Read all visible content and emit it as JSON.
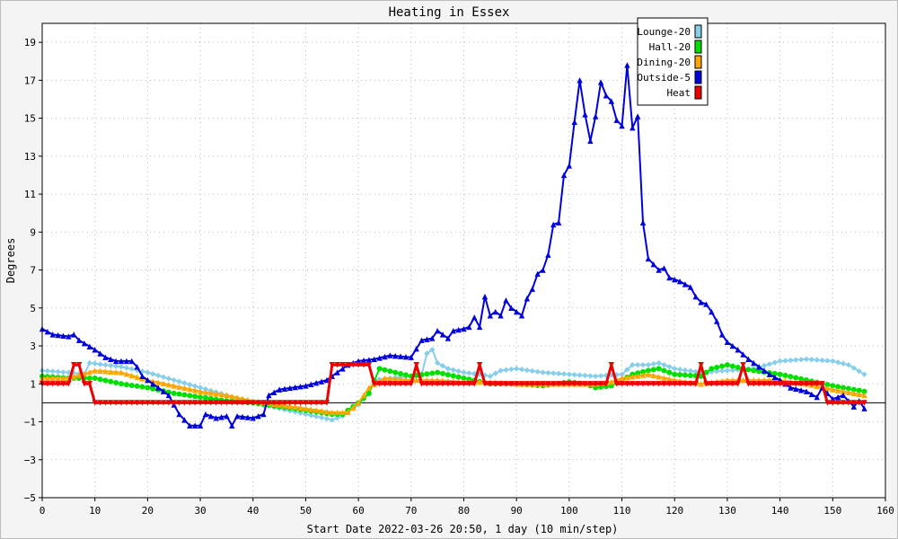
{
  "chart_data": {
    "type": "line",
    "title": "Heating in Essex",
    "xlabel": "Start Date 2022-03-26 20:50, 1 day (10 min/step)",
    "ylabel": "Degrees",
    "xlim": [
      0,
      160
    ],
    "ylim": [
      -5,
      20
    ],
    "xticks": [
      0,
      10,
      20,
      30,
      40,
      50,
      60,
      70,
      80,
      90,
      100,
      110,
      120,
      130,
      140,
      150,
      160
    ],
    "yticks": [
      -5,
      -3,
      -1,
      1,
      3,
      5,
      7,
      9,
      11,
      13,
      15,
      17,
      19
    ],
    "zero_line": 0,
    "grid": true,
    "legend_position": "top-right",
    "series": [
      {
        "name": "Lounge-20",
        "color": "#87ceeb",
        "marker": "diamond",
        "points": [
          [
            0,
            1.7
          ],
          [
            5,
            1.6
          ],
          [
            8,
            1.5
          ],
          [
            9,
            2.1
          ],
          [
            12,
            2.0
          ],
          [
            15,
            1.9
          ],
          [
            20,
            1.6
          ],
          [
            25,
            1.2
          ],
          [
            30,
            0.8
          ],
          [
            35,
            0.4
          ],
          [
            40,
            0.0
          ],
          [
            45,
            -0.3
          ],
          [
            50,
            -0.6
          ],
          [
            55,
            -0.9
          ],
          [
            57,
            -0.7
          ],
          [
            60,
            -0.1
          ],
          [
            62,
            0.5
          ],
          [
            63,
            1.2
          ],
          [
            66,
            1.3
          ],
          [
            70,
            1.4
          ],
          [
            72,
            1.5
          ],
          [
            73,
            2.6
          ],
          [
            74,
            2.8
          ],
          [
            75,
            2.1
          ],
          [
            77,
            1.8
          ],
          [
            80,
            1.6
          ],
          [
            83,
            1.5
          ],
          [
            85,
            1.4
          ],
          [
            87,
            1.7
          ],
          [
            90,
            1.8
          ],
          [
            95,
            1.6
          ],
          [
            100,
            1.5
          ],
          [
            105,
            1.4
          ],
          [
            110,
            1.5
          ],
          [
            112,
            2.0
          ],
          [
            115,
            2.0
          ],
          [
            117,
            2.1
          ],
          [
            120,
            1.8
          ],
          [
            125,
            1.6
          ],
          [
            130,
            1.7
          ],
          [
            135,
            1.8
          ],
          [
            140,
            2.2
          ],
          [
            145,
            2.3
          ],
          [
            150,
            2.2
          ],
          [
            153,
            2.0
          ],
          [
            156,
            1.5
          ]
        ]
      },
      {
        "name": "Hall-20",
        "color": "#00e000",
        "marker": "circle",
        "points": [
          [
            0,
            1.4
          ],
          [
            5,
            1.3
          ],
          [
            10,
            1.3
          ],
          [
            15,
            1.0
          ],
          [
            20,
            0.8
          ],
          [
            25,
            0.5
          ],
          [
            30,
            0.3
          ],
          [
            35,
            0.1
          ],
          [
            40,
            0.0
          ],
          [
            45,
            -0.2
          ],
          [
            50,
            -0.4
          ],
          [
            55,
            -0.6
          ],
          [
            57,
            -0.6
          ],
          [
            60,
            0.0
          ],
          [
            62,
            0.5
          ],
          [
            64,
            1.8
          ],
          [
            67,
            1.6
          ],
          [
            70,
            1.4
          ],
          [
            75,
            1.6
          ],
          [
            80,
            1.3
          ],
          [
            85,
            1.0
          ],
          [
            90,
            1.0
          ],
          [
            95,
            0.9
          ],
          [
            100,
            1.1
          ],
          [
            103,
            1.0
          ],
          [
            105,
            0.8
          ],
          [
            108,
            0.9
          ],
          [
            112,
            1.5
          ],
          [
            115,
            1.7
          ],
          [
            117,
            1.8
          ],
          [
            120,
            1.5
          ],
          [
            125,
            1.4
          ],
          [
            127,
            1.8
          ],
          [
            130,
            2.0
          ],
          [
            133,
            1.8
          ],
          [
            135,
            1.7
          ],
          [
            140,
            1.5
          ],
          [
            145,
            1.2
          ],
          [
            150,
            0.9
          ],
          [
            156,
            0.6
          ]
        ]
      },
      {
        "name": "Dining-20",
        "color": "#ffa500",
        "marker": "triangle",
        "points": [
          [
            0,
            1.3
          ],
          [
            5,
            1.3
          ],
          [
            10,
            1.7
          ],
          [
            15,
            1.6
          ],
          [
            20,
            1.2
          ],
          [
            25,
            0.9
          ],
          [
            30,
            0.6
          ],
          [
            35,
            0.4
          ],
          [
            40,
            0.1
          ],
          [
            45,
            -0.1
          ],
          [
            50,
            -0.3
          ],
          [
            55,
            -0.5
          ],
          [
            58,
            -0.5
          ],
          [
            60,
            0.0
          ],
          [
            62,
            0.8
          ],
          [
            65,
            1.3
          ],
          [
            70,
            1.2
          ],
          [
            75,
            1.2
          ],
          [
            80,
            1.1
          ],
          [
            85,
            1.1
          ],
          [
            90,
            1.0
          ],
          [
            95,
            1.0
          ],
          [
            100,
            1.0
          ],
          [
            105,
            1.0
          ],
          [
            108,
            1.1
          ],
          [
            110,
            1.3
          ],
          [
            115,
            1.5
          ],
          [
            120,
            1.2
          ],
          [
            125,
            1.0
          ],
          [
            130,
            1.2
          ],
          [
            135,
            1.2
          ],
          [
            140,
            1.2
          ],
          [
            145,
            1.0
          ],
          [
            150,
            0.7
          ],
          [
            156,
            0.4
          ]
        ]
      },
      {
        "name": "Outside-5",
        "color": "#0000dd",
        "marker": "triangle",
        "points": [
          [
            0,
            3.9
          ],
          [
            2,
            3.6
          ],
          [
            5,
            3.5
          ],
          [
            6,
            3.6
          ],
          [
            7,
            3.3
          ],
          [
            10,
            2.8
          ],
          [
            12,
            2.4
          ],
          [
            14,
            2.2
          ],
          [
            17,
            2.2
          ],
          [
            18,
            1.9
          ],
          [
            19,
            1.4
          ],
          [
            22,
            0.8
          ],
          [
            24,
            0.4
          ],
          [
            26,
            -0.6
          ],
          [
            28,
            -1.2
          ],
          [
            30,
            -1.2
          ],
          [
            31,
            -0.6
          ],
          [
            33,
            -0.8
          ],
          [
            35,
            -0.7
          ],
          [
            36,
            -1.2
          ],
          [
            37,
            -0.7
          ],
          [
            40,
            -0.8
          ],
          [
            42,
            -0.6
          ],
          [
            43,
            0.4
          ],
          [
            45,
            0.7
          ],
          [
            50,
            0.9
          ],
          [
            54,
            1.2
          ],
          [
            56,
            1.6
          ],
          [
            58,
            2.0
          ],
          [
            60,
            2.2
          ],
          [
            63,
            2.3
          ],
          [
            66,
            2.5
          ],
          [
            70,
            2.4
          ],
          [
            72,
            3.3
          ],
          [
            74,
            3.4
          ],
          [
            75,
            3.8
          ],
          [
            77,
            3.4
          ],
          [
            78,
            3.8
          ],
          [
            80,
            3.9
          ],
          [
            81,
            4.0
          ],
          [
            82,
            4.5
          ],
          [
            83,
            4.0
          ],
          [
            84,
            5.6
          ],
          [
            85,
            4.6
          ],
          [
            86,
            4.8
          ],
          [
            87,
            4.6
          ],
          [
            88,
            5.4
          ],
          [
            89,
            5.0
          ],
          [
            90,
            4.8
          ],
          [
            91,
            4.6
          ],
          [
            92,
            5.5
          ],
          [
            93,
            6.0
          ],
          [
            94,
            6.8
          ],
          [
            95,
            7.0
          ],
          [
            96,
            7.8
          ],
          [
            97,
            9.4
          ],
          [
            98,
            9.5
          ],
          [
            99,
            12.0
          ],
          [
            100,
            12.5
          ],
          [
            101,
            14.8
          ],
          [
            102,
            17.0
          ],
          [
            103,
            15.2
          ],
          [
            104,
            13.8
          ],
          [
            105,
            15.1
          ],
          [
            106,
            16.9
          ],
          [
            107,
            16.2
          ],
          [
            108,
            15.9
          ],
          [
            109,
            14.9
          ],
          [
            110,
            14.6
          ],
          [
            111,
            17.8
          ],
          [
            112,
            14.5
          ],
          [
            113,
            15.1
          ],
          [
            114,
            9.5
          ],
          [
            115,
            7.6
          ],
          [
            117,
            7.0
          ],
          [
            118,
            7.1
          ],
          [
            119,
            6.6
          ],
          [
            121,
            6.4
          ],
          [
            123,
            6.1
          ],
          [
            124,
            5.6
          ],
          [
            125,
            5.3
          ],
          [
            126,
            5.2
          ],
          [
            127,
            4.8
          ],
          [
            128,
            4.3
          ],
          [
            129,
            3.6
          ],
          [
            130,
            3.2
          ],
          [
            132,
            2.8
          ],
          [
            134,
            2.3
          ],
          [
            136,
            1.9
          ],
          [
            138,
            1.5
          ],
          [
            140,
            1.2
          ],
          [
            142,
            0.8
          ],
          [
            145,
            0.6
          ],
          [
            147,
            0.3
          ],
          [
            148,
            0.8
          ],
          [
            150,
            0.2
          ],
          [
            152,
            0.4
          ],
          [
            154,
            -0.2
          ],
          [
            155,
            0.1
          ],
          [
            156,
            -0.3
          ]
        ]
      },
      {
        "name": "Heat",
        "color": "#ee0000",
        "marker": "triangle-down",
        "points": [
          [
            0,
            1.0
          ],
          [
            5,
            1.0
          ],
          [
            6,
            2.0
          ],
          [
            7,
            2.0
          ],
          [
            8,
            1.0
          ],
          [
            9,
            1.0
          ],
          [
            10,
            0.0
          ],
          [
            54,
            0.0
          ],
          [
            55,
            2.0
          ],
          [
            62,
            2.0
          ],
          [
            63,
            1.0
          ],
          [
            70,
            1.0
          ],
          [
            71,
            2.0
          ],
          [
            72,
            1.0
          ],
          [
            82,
            1.0
          ],
          [
            83,
            2.0
          ],
          [
            84,
            1.0
          ],
          [
            107,
            1.0
          ],
          [
            108,
            2.0
          ],
          [
            109,
            1.0
          ],
          [
            124,
            1.0
          ],
          [
            125,
            2.0
          ],
          [
            126,
            1.0
          ],
          [
            132,
            1.0
          ],
          [
            133,
            2.0
          ],
          [
            134,
            1.0
          ],
          [
            148,
            1.0
          ],
          [
            149,
            0.0
          ],
          [
            156,
            0.0
          ]
        ]
      }
    ]
  }
}
